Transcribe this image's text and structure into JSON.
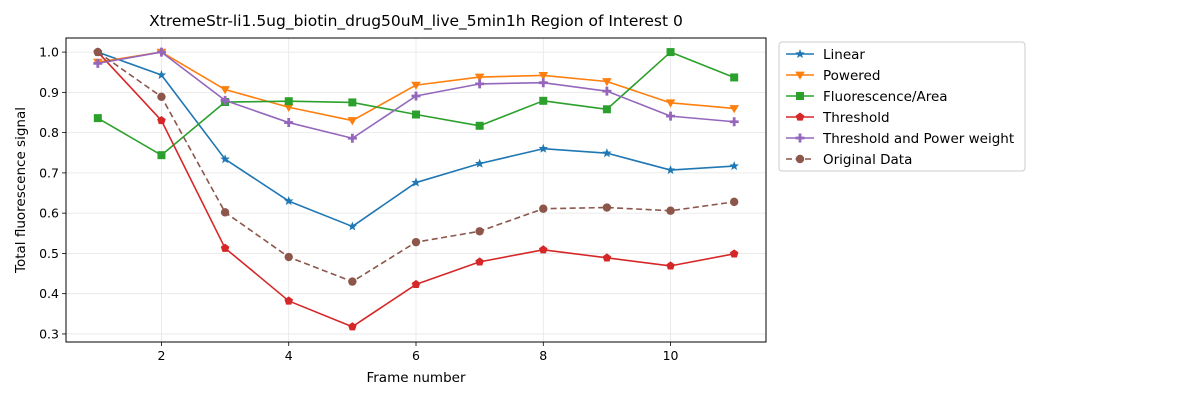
{
  "chart_data": {
    "type": "line",
    "title": "XtremeStr-li1.5ug_biotin_drug50uM_live_5min1h Region of Interest 0",
    "xlabel": "Frame number",
    "ylabel": "Total fluorescence signal",
    "xlim": [
      0.5,
      11.5
    ],
    "ylim": [
      0.28,
      1.035
    ],
    "xticks": [
      2,
      4,
      6,
      8,
      10
    ],
    "yticks": [
      0.3,
      0.4,
      0.5,
      0.6,
      0.7,
      0.8,
      0.9,
      1.0
    ],
    "ytick_labels": [
      "0.3",
      "0.4",
      "0.5",
      "0.6",
      "0.7",
      "0.8",
      "0.9",
      "1.0"
    ],
    "grid": true,
    "legend_position": "outside right, top",
    "x": [
      1,
      2,
      3,
      4,
      5,
      6,
      7,
      8,
      9,
      10,
      11
    ],
    "series": [
      {
        "name": "Linear",
        "color": "#1f77b4",
        "marker": "star",
        "linestyle": "solid",
        "values": [
          1.0,
          0.943,
          0.734,
          0.63,
          0.567,
          0.676,
          0.723,
          0.76,
          0.749,
          0.707,
          0.717
        ]
      },
      {
        "name": "Powered",
        "color": "#ff7f0e",
        "marker": "triangle-down",
        "linestyle": "solid",
        "values": [
          0.975,
          1.0,
          0.907,
          0.863,
          0.83,
          0.918,
          0.938,
          0.942,
          0.927,
          0.874,
          0.86
        ]
      },
      {
        "name": "Fluorescence/Area",
        "color": "#2ca02c",
        "marker": "square",
        "linestyle": "solid",
        "values": [
          0.836,
          0.744,
          0.876,
          0.878,
          0.875,
          0.845,
          0.817,
          0.879,
          0.858,
          1.0,
          0.937
        ]
      },
      {
        "name": "Threshold",
        "color": "#d62728",
        "marker": "pentagon",
        "linestyle": "solid",
        "values": [
          1.0,
          0.83,
          0.513,
          0.382,
          0.318,
          0.423,
          0.479,
          0.509,
          0.489,
          0.469,
          0.499
        ]
      },
      {
        "name": "Threshold and Power weight",
        "color": "#9467bd",
        "marker": "plus",
        "linestyle": "solid",
        "values": [
          0.972,
          1.0,
          0.88,
          0.825,
          0.786,
          0.891,
          0.921,
          0.924,
          0.903,
          0.841,
          0.827
        ]
      },
      {
        "name": "Original Data",
        "color": "#8c564b",
        "marker": "circle",
        "linestyle": "dashed",
        "values": [
          1.0,
          0.889,
          0.602,
          0.491,
          0.43,
          0.528,
          0.555,
          0.611,
          0.614,
          0.606,
          0.628
        ]
      }
    ]
  }
}
